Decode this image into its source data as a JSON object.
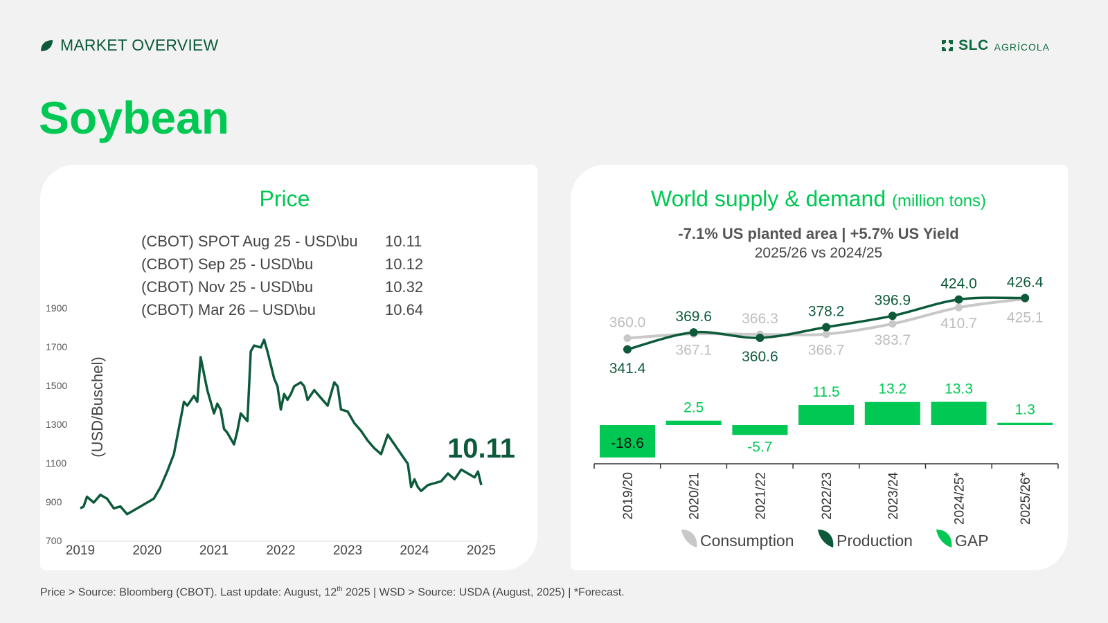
{
  "header": {
    "section_label": "MARKET OVERVIEW",
    "logo_text": "SLC",
    "logo_subtext": "AGRÍCOLA",
    "page_title": "Soybean"
  },
  "colors": {
    "accent_green": "#00c853",
    "dark_green": "#0d5a3a",
    "consumption_gray": "#c8c8c8",
    "gap_green": "#00c853"
  },
  "icons": [
    "leaf-icon",
    "slc-logo-mark-icon"
  ],
  "price_panel": {
    "title": "Price",
    "quotes": [
      {
        "label": "(CBOT) SPOT Aug 25 - USD\\bu",
        "value": "10.11"
      },
      {
        "label": "(CBOT)  Sep 25 - USD\\bu",
        "value": "10.12"
      },
      {
        "label": "(CBOT) Nov 25 - USD\\bu",
        "value": "10.32"
      },
      {
        "label": "(CBOT) Mar 26 – USD\\bu",
        "value": "10.64"
      }
    ],
    "last_value_label": "10.11"
  },
  "wsd_panel": {
    "title": "World supply & demand",
    "title_unit": "(million tons)",
    "subtitle_bold": "-7.1% US planted area  |  +5.7% US Yield",
    "subtitle_compare": "2025/26 vs 2024/25"
  },
  "footer": {
    "text_before_sup": "Price > Source: Bloomberg (CBOT). Last update: August, 12",
    "sup": "th",
    "text_after_sup": " 2025  |  WSD > Source: USDA (August, 2025) | *Forecast."
  },
  "chart_data": [
    {
      "type": "line",
      "ylabel": "(USD/Buschel)",
      "ylim": [
        700,
        1900
      ],
      "yticks": [
        "700",
        "900",
        "1100",
        "1300",
        "1500",
        "1700",
        "1900"
      ],
      "xticks": [
        "2019",
        "2020",
        "2021",
        "2022",
        "2023",
        "2024",
        "2025"
      ],
      "grid": false,
      "series": [
        {
          "values_x": [
            2019.0,
            2019.05,
            2019.1,
            2019.2,
            2019.3,
            2019.4,
            2019.5,
            2019.6,
            2019.7,
            2019.8,
            2019.9,
            2020.0,
            2020.1,
            2020.2,
            2020.3,
            2020.4,
            2020.5,
            2020.55,
            2020.6,
            2020.7,
            2020.75,
            2020.8,
            2020.9,
            2021.0,
            2021.05,
            2021.1,
            2021.15,
            2021.2,
            2021.3,
            2021.35,
            2021.4,
            2021.5,
            2021.55,
            2021.6,
            2021.7,
            2021.75,
            2021.8,
            2021.9,
            2021.95,
            2022.0,
            2022.05,
            2022.1,
            2022.15,
            2022.2,
            2022.3,
            2022.35,
            2022.4,
            2022.5,
            2022.6,
            2022.7,
            2022.8,
            2022.85,
            2022.9,
            2023.0,
            2023.1,
            2023.2,
            2023.3,
            2023.4,
            2023.5,
            2023.6,
            2023.7,
            2023.8,
            2023.9,
            2023.95,
            2024.0,
            2024.05,
            2024.1,
            2024.2,
            2024.3,
            2024.4,
            2024.5,
            2024.6,
            2024.7,
            2024.8,
            2024.9,
            2024.95,
            2025.0
          ],
          "values": [
            870,
            880,
            930,
            900,
            940,
            920,
            870,
            880,
            840,
            860,
            880,
            900,
            920,
            980,
            1060,
            1150,
            1330,
            1420,
            1400,
            1450,
            1420,
            1650,
            1480,
            1360,
            1410,
            1380,
            1280,
            1260,
            1200,
            1270,
            1360,
            1320,
            1680,
            1710,
            1700,
            1740,
            1680,
            1540,
            1500,
            1380,
            1460,
            1430,
            1460,
            1500,
            1520,
            1500,
            1430,
            1480,
            1440,
            1400,
            1520,
            1500,
            1380,
            1370,
            1310,
            1270,
            1220,
            1180,
            1150,
            1250,
            1200,
            1150,
            1100,
            980,
            1020,
            980,
            960,
            990,
            1000,
            1010,
            1050,
            1020,
            1070,
            1050,
            1030,
            1060,
            990
          ]
        }
      ],
      "annotations": [
        "10.11"
      ]
    },
    {
      "type": "line",
      "categories": [
        "2019/20",
        "2020/21",
        "2021/22",
        "2022/23",
        "2023/24",
        "2024/25*",
        "2025/26*"
      ],
      "series": [
        {
          "name": "Consumption",
          "values": [
            360.0,
            367.1,
            366.3,
            366.7,
            383.7,
            410.7,
            425.1
          ]
        },
        {
          "name": "Production",
          "values": [
            341.4,
            369.6,
            360.6,
            378.2,
            396.9,
            424.0,
            426.4
          ]
        }
      ],
      "legend": "bottom",
      "grid": false
    },
    {
      "type": "bar",
      "categories": [
        "2019/20",
        "2020/21",
        "2021/22",
        "2022/23",
        "2023/24",
        "2024/25*",
        "2025/26*"
      ],
      "series": [
        {
          "name": "GAP",
          "values": [
            -18.6,
            2.5,
            -5.7,
            11.5,
            13.2,
            13.3,
            1.3
          ]
        }
      ],
      "legend": "bottom",
      "grid": false
    }
  ]
}
